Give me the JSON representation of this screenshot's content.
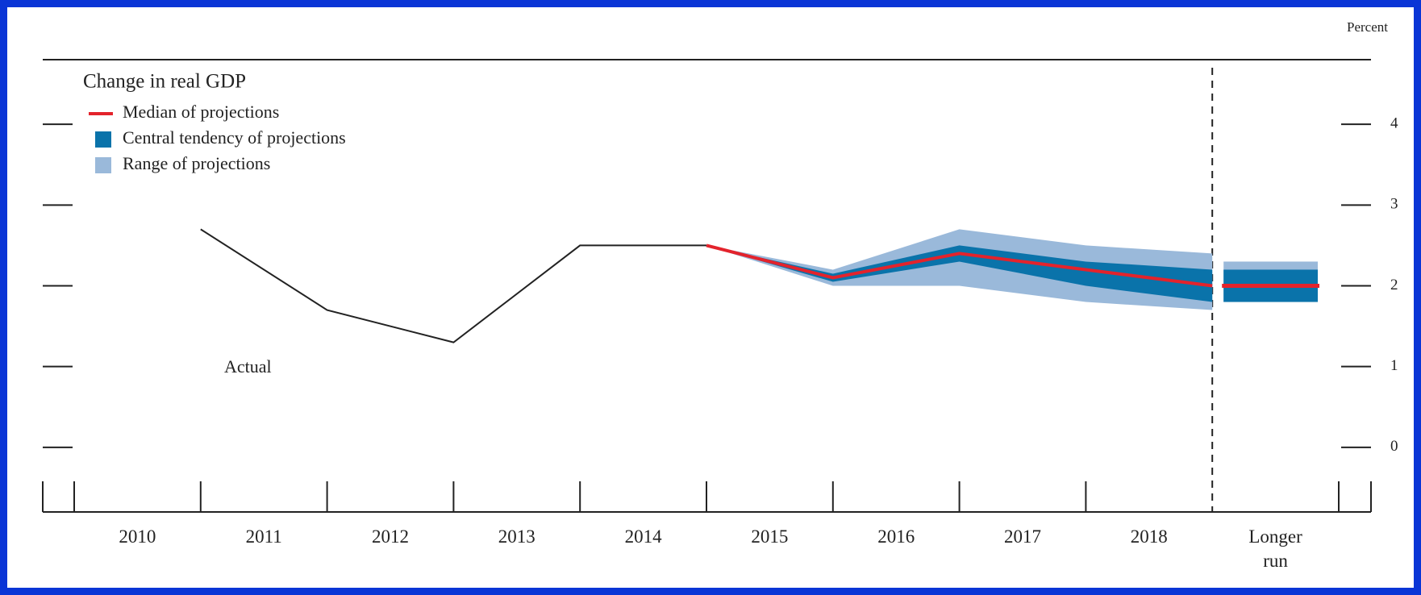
{
  "chart_data": {
    "type": "fan",
    "title": "Change in real GDP",
    "y_unit_label": "Percent",
    "categories": [
      "2010",
      "2011",
      "2012",
      "2013",
      "2014",
      "2015",
      "2016",
      "2017",
      "2018",
      "Longer run"
    ],
    "actual": {
      "name": "Actual",
      "color": "#222222",
      "values": [
        2.7,
        1.7,
        1.3,
        2.5,
        2.5,
        null,
        null,
        null,
        null,
        null
      ]
    },
    "median": {
      "name": "Median of projections",
      "color": "#e3232c",
      "values": [
        null,
        null,
        null,
        null,
        2.5,
        2.1,
        2.4,
        2.2,
        2.0,
        2.0
      ]
    },
    "central_tendency": {
      "name": "Central tendency of projections",
      "color": "#0a73aa",
      "low": [
        null,
        null,
        null,
        null,
        2.5,
        2.05,
        2.3,
        2.0,
        1.8,
        1.8
      ],
      "high": [
        null,
        null,
        null,
        null,
        2.5,
        2.15,
        2.5,
        2.3,
        2.2,
        2.2
      ]
    },
    "range": {
      "name": "Range of projections",
      "color": "#9ab9da",
      "low": [
        null,
        null,
        null,
        null,
        2.5,
        2.0,
        2.0,
        1.8,
        1.7,
        1.8
      ],
      "high": [
        null,
        null,
        null,
        null,
        2.5,
        2.2,
        2.7,
        2.5,
        2.4,
        2.3
      ]
    },
    "ylim": [
      -0.8,
      4.8
    ],
    "yticks": [
      0,
      1,
      2,
      3,
      4
    ]
  }
}
